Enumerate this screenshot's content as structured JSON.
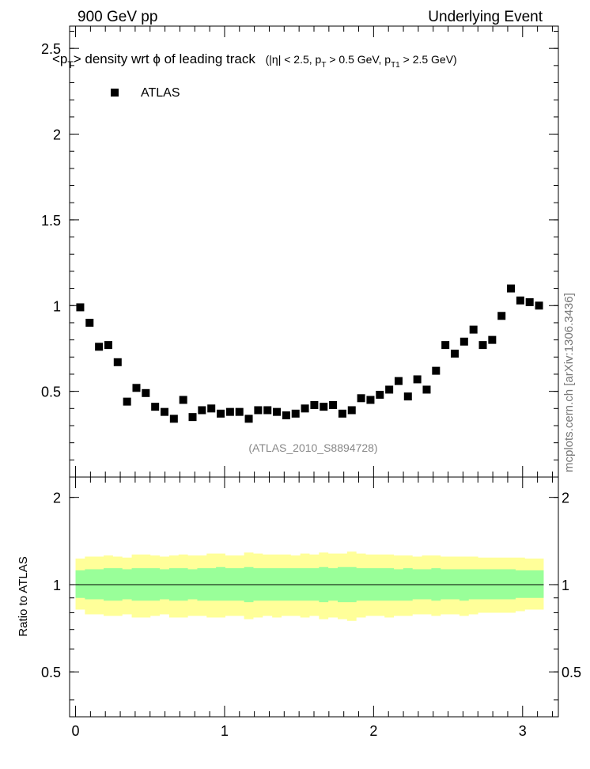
{
  "header": {
    "left": "900 GeV pp",
    "right": "Underlying Event",
    "watermark": "mcplots.cern.ch [arXiv:1306.3436]"
  },
  "chart_data": [
    {
      "type": "scatter",
      "title": "<p_T> density wrt φ of leading track  (|η| < 2.5, p_T > 0.5 GeV, p_T1 > 2.5 GeV)",
      "title_main": "<p",
      "title_main_sub": "T",
      "title_main_rest": "> density wrt  ϕ of leading track",
      "title_cuts_1": "(|η| < 2.5, p",
      "title_cuts_1_sub": "T",
      "title_cuts_2": " > 0.5 GeV, p",
      "title_cuts_2_sub": "T1",
      "title_cuts_3": " > 2.5 GeV)",
      "analysis_label": "(ATLAS_2010_S8894728)",
      "xlabel": "",
      "ylabel": "",
      "xlim": [
        -0.04,
        3.24
      ],
      "ylim": [
        0,
        2.63
      ],
      "yticks": [
        "0.5",
        "1",
        "1.5",
        "2",
        "2.5"
      ],
      "legend": {
        "placement": "top-left",
        "entries": [
          "ATLAS"
        ]
      },
      "series": [
        {
          "name": "ATLAS",
          "color": "#000000",
          "marker": "square",
          "x": [
            0.0314,
            0.0942,
            0.1571,
            0.2199,
            0.2827,
            0.3456,
            0.4084,
            0.4712,
            0.5341,
            0.5969,
            0.6597,
            0.7226,
            0.7854,
            0.8482,
            0.9111,
            0.9739,
            1.0367,
            1.0996,
            1.1624,
            1.2252,
            1.2881,
            1.3509,
            1.4137,
            1.4765,
            1.5394,
            1.6022,
            1.665,
            1.7279,
            1.7907,
            1.8535,
            1.9164,
            1.9792,
            2.042,
            2.1049,
            2.1677,
            2.2305,
            2.2934,
            2.3562,
            2.419,
            2.4819,
            2.5447,
            2.6075,
            2.6704,
            2.7332,
            2.796,
            2.8589,
            2.9217,
            2.9845,
            3.0473,
            3.1102
          ],
          "y": [
            0.99,
            0.9,
            0.76,
            0.77,
            0.67,
            0.44,
            0.52,
            0.49,
            0.41,
            0.38,
            0.34,
            0.45,
            0.35,
            0.39,
            0.4,
            0.37,
            0.38,
            0.38,
            0.34,
            0.39,
            0.39,
            0.38,
            0.36,
            0.37,
            0.4,
            0.42,
            0.41,
            0.42,
            0.37,
            0.39,
            0.46,
            0.45,
            0.48,
            0.51,
            0.56,
            0.47,
            0.57,
            0.51,
            0.62,
            0.77,
            0.72,
            0.79,
            0.86,
            0.77,
            0.8,
            0.94,
            1.1,
            1.03,
            1.02,
            1.0
          ]
        }
      ]
    },
    {
      "type": "area",
      "ylabel": "Ratio to ATLAS",
      "xlabel": "",
      "xlim": [
        -0.04,
        3.24
      ],
      "ylim": [
        0.35,
        2.35
      ],
      "yscale": "log",
      "xticks": [
        "0",
        "1",
        "2",
        "3"
      ],
      "yticks": [
        "0.5",
        "1",
        "2"
      ],
      "reference_line": 1,
      "series": [
        {
          "name": "",
          "color": "#ffff99",
          "x": [
            0,
            0.0628,
            0.1257,
            0.1885,
            0.2513,
            0.3142,
            0.377,
            0.4398,
            0.5027,
            0.5655,
            0.6283,
            0.6912,
            0.754,
            0.8168,
            0.8796,
            0.9425,
            1.0053,
            1.0681,
            1.131,
            1.1938,
            1.2566,
            1.3195,
            1.3823,
            1.4451,
            1.508,
            1.5708,
            1.6336,
            1.6965,
            1.7593,
            1.8221,
            1.885,
            1.9478,
            2.0106,
            2.0735,
            2.1363,
            2.1991,
            2.2619,
            2.3248,
            2.3876,
            2.4504,
            2.5133,
            2.5761,
            2.6389,
            2.7018,
            2.7646,
            2.8274,
            2.8903,
            2.9531,
            3.0159,
            3.0788
          ],
          "low": [
            0.82,
            0.79,
            0.79,
            0.78,
            0.78,
            0.79,
            0.77,
            0.77,
            0.78,
            0.79,
            0.77,
            0.77,
            0.78,
            0.78,
            0.77,
            0.77,
            0.78,
            0.78,
            0.76,
            0.77,
            0.78,
            0.77,
            0.78,
            0.78,
            0.77,
            0.78,
            0.76,
            0.77,
            0.76,
            0.75,
            0.77,
            0.78,
            0.78,
            0.77,
            0.78,
            0.78,
            0.79,
            0.79,
            0.78,
            0.79,
            0.79,
            0.78,
            0.79,
            0.8,
            0.8,
            0.8,
            0.8,
            0.81,
            0.82,
            0.82
          ],
          "high": [
            1.23,
            1.25,
            1.25,
            1.26,
            1.25,
            1.24,
            1.27,
            1.27,
            1.26,
            1.25,
            1.26,
            1.27,
            1.26,
            1.26,
            1.28,
            1.28,
            1.26,
            1.26,
            1.29,
            1.28,
            1.27,
            1.27,
            1.27,
            1.26,
            1.28,
            1.27,
            1.29,
            1.28,
            1.28,
            1.3,
            1.28,
            1.27,
            1.27,
            1.27,
            1.26,
            1.26,
            1.25,
            1.26,
            1.26,
            1.25,
            1.25,
            1.25,
            1.25,
            1.24,
            1.24,
            1.24,
            1.24,
            1.24,
            1.23,
            1.23
          ]
        },
        {
          "name": "",
          "color": "#99ff99",
          "x": [
            0,
            0.0628,
            0.1257,
            0.1885,
            0.2513,
            0.3142,
            0.377,
            0.4398,
            0.5027,
            0.5655,
            0.6283,
            0.6912,
            0.754,
            0.8168,
            0.8796,
            0.9425,
            1.0053,
            1.0681,
            1.131,
            1.1938,
            1.2566,
            1.3195,
            1.3823,
            1.4451,
            1.508,
            1.5708,
            1.6336,
            1.6965,
            1.7593,
            1.8221,
            1.885,
            1.9478,
            2.0106,
            2.0735,
            2.1363,
            2.1991,
            2.2619,
            2.3248,
            2.3876,
            2.4504,
            2.5133,
            2.5761,
            2.6389,
            2.7018,
            2.7646,
            2.8274,
            2.8903,
            2.9531,
            3.0159,
            3.0788
          ],
          "low": [
            0.9,
            0.89,
            0.89,
            0.88,
            0.88,
            0.89,
            0.88,
            0.88,
            0.88,
            0.89,
            0.88,
            0.88,
            0.89,
            0.88,
            0.88,
            0.88,
            0.88,
            0.88,
            0.87,
            0.88,
            0.88,
            0.88,
            0.88,
            0.88,
            0.88,
            0.88,
            0.87,
            0.88,
            0.87,
            0.87,
            0.88,
            0.88,
            0.88,
            0.88,
            0.88,
            0.88,
            0.89,
            0.89,
            0.88,
            0.89,
            0.89,
            0.88,
            0.89,
            0.89,
            0.89,
            0.89,
            0.89,
            0.9,
            0.9,
            0.9
          ],
          "high": [
            1.12,
            1.13,
            1.13,
            1.14,
            1.14,
            1.13,
            1.14,
            1.14,
            1.14,
            1.13,
            1.14,
            1.14,
            1.13,
            1.14,
            1.14,
            1.15,
            1.14,
            1.14,
            1.15,
            1.14,
            1.14,
            1.14,
            1.14,
            1.14,
            1.14,
            1.14,
            1.15,
            1.14,
            1.15,
            1.15,
            1.14,
            1.14,
            1.14,
            1.14,
            1.13,
            1.14,
            1.13,
            1.13,
            1.14,
            1.13,
            1.13,
            1.13,
            1.13,
            1.13,
            1.13,
            1.13,
            1.13,
            1.12,
            1.12,
            1.12
          ]
        }
      ]
    }
  ]
}
